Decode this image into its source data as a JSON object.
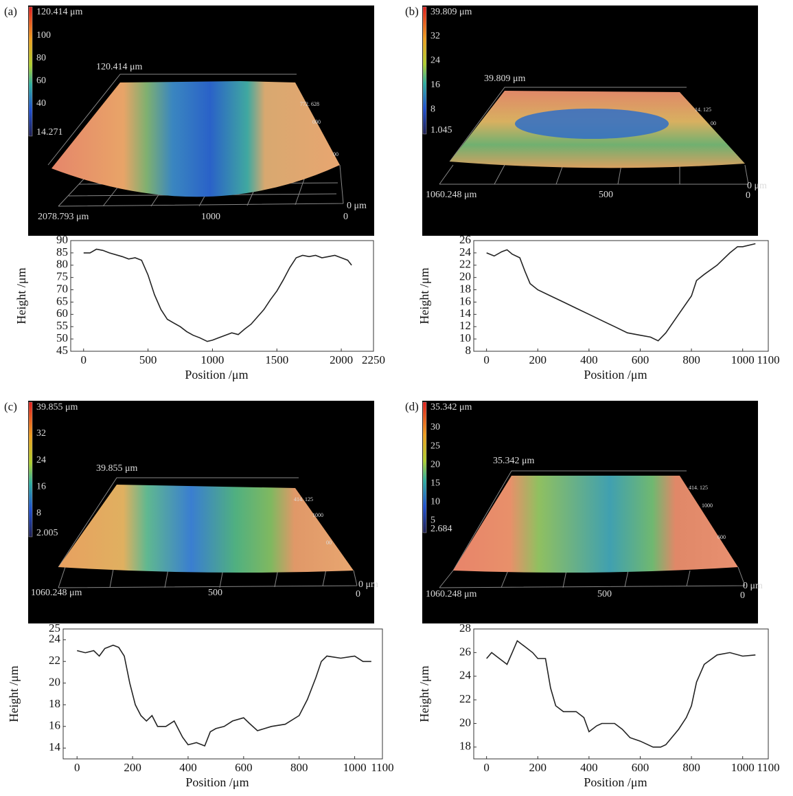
{
  "chart_data": [
    {
      "type": "line",
      "panel": "(a)",
      "xlabel": "Position /μm",
      "ylabel": "Height /μm",
      "x": [
        0,
        50,
        100,
        150,
        200,
        300,
        350,
        400,
        450,
        500,
        550,
        600,
        650,
        700,
        750,
        800,
        850,
        900,
        960,
        1000,
        1050,
        1100,
        1150,
        1200,
        1250,
        1300,
        1350,
        1400,
        1450,
        1500,
        1550,
        1600,
        1650,
        1700,
        1750,
        1800,
        1850,
        1900,
        1950,
        2000,
        2050,
        2080
      ],
      "values": [
        85,
        85,
        86.5,
        86,
        85,
        83.5,
        82.5,
        83,
        82,
        76,
        68,
        62,
        58,
        56.5,
        55,
        53,
        51.5,
        50.5,
        49,
        49.5,
        50.5,
        51.5,
        52.5,
        51.8,
        54,
        56,
        59,
        62,
        66,
        69.5,
        74,
        79,
        83,
        84,
        83.5,
        84,
        83,
        83.5,
        84,
        83,
        82,
        80
      ],
      "color": "#222222",
      "xlim": [
        -100,
        2250
      ],
      "ylim": [
        45,
        90
      ],
      "xticks": [
        0,
        500,
        1000,
        1500,
        2000,
        2250
      ],
      "yticks": [
        45,
        50,
        55,
        60,
        65,
        70,
        75,
        80,
        85,
        90
      ],
      "surface": {
        "colorbar_lim": [
          14.271,
          120.414
        ],
        "colorbar_ticks": [
          {
            "value": 120.414,
            "label": "120.414 μm"
          },
          100,
          80,
          60,
          40,
          14.271
        ],
        "labels": [
          "120.414 μm",
          "2078.793 μm",
          "1000",
          "0 μm",
          "0"
        ],
        "small_labels": [
          "772. 628",
          "000",
          "00"
        ]
      }
    },
    {
      "type": "line",
      "panel": "(b)",
      "xlabel": "Position /μm",
      "ylabel": "Height /μm",
      "x": [
        0,
        30,
        60,
        80,
        100,
        130,
        150,
        170,
        200,
        250,
        300,
        350,
        400,
        450,
        500,
        550,
        600,
        640,
        670,
        700,
        750,
        800,
        820,
        850,
        900,
        950,
        980,
        1000,
        1050
      ],
      "values": [
        24,
        23.5,
        24.2,
        24.5,
        23.8,
        23.2,
        21,
        19,
        18,
        17,
        16,
        15,
        14,
        13,
        12,
        11,
        10.6,
        10.3,
        9.7,
        11,
        14,
        17,
        19.5,
        20.5,
        22,
        24,
        25,
        25,
        25.5
      ],
      "color": "#222222",
      "xlim": [
        -50,
        1100
      ],
      "ylim": [
        8,
        26
      ],
      "xticks": [
        0,
        200,
        400,
        600,
        800,
        1000,
        1100
      ],
      "yticks": [
        8,
        10,
        12,
        14,
        16,
        18,
        20,
        22,
        24,
        26
      ],
      "surface": {
        "colorbar_lim": [
          1.045,
          39.809
        ],
        "colorbar_ticks": [
          {
            "value": 39.809,
            "label": "39.809 μm"
          },
          32,
          24,
          16,
          8,
          1.045
        ],
        "labels": [
          "39.809 μm",
          "1060.248 μm",
          "500",
          "0 μm",
          "0"
        ],
        "small_labels": [
          "14. 125",
          "00"
        ]
      }
    },
    {
      "type": "line",
      "panel": "(c)",
      "xlabel": "Position /μm",
      "ylabel": "Height /μm",
      "x": [
        0,
        30,
        60,
        80,
        100,
        130,
        150,
        170,
        190,
        210,
        230,
        250,
        270,
        290,
        320,
        350,
        380,
        400,
        430,
        460,
        480,
        500,
        530,
        560,
        600,
        620,
        650,
        700,
        750,
        800,
        830,
        860,
        880,
        900,
        950,
        1000,
        1030,
        1060
      ],
      "values": [
        23,
        22.8,
        23,
        22.5,
        23.2,
        23.5,
        23.3,
        22.5,
        20,
        18,
        17,
        16.5,
        17,
        16,
        16,
        16.5,
        15,
        14.3,
        14.5,
        14.2,
        15.5,
        15.8,
        16,
        16.5,
        16.8,
        16.3,
        15.6,
        16,
        16.2,
        17,
        18.5,
        20.5,
        22,
        22.5,
        22.3,
        22.5,
        22,
        22
      ],
      "color": "#222222",
      "xlim": [
        -50,
        1100
      ],
      "ylim": [
        13,
        25
      ],
      "xticks": [
        0,
        200,
        400,
        600,
        800,
        1000,
        1100
      ],
      "yticks": [
        14,
        16,
        18,
        20,
        22,
        24,
        25
      ],
      "surface": {
        "colorbar_lim": [
          2.005,
          39.855
        ],
        "colorbar_ticks": [
          {
            "value": 39.855,
            "label": "39.855 μm"
          },
          32,
          24,
          16,
          8,
          2.005
        ],
        "labels": [
          "39.855 μm",
          "1060.248 μm",
          "500",
          "0 μm",
          "0"
        ],
        "small_labels": [
          "414. 125",
          "1000",
          "00"
        ]
      }
    },
    {
      "type": "line",
      "panel": "(d)",
      "xlabel": "Position /μm",
      "ylabel": "Height /μm",
      "x": [
        0,
        20,
        50,
        80,
        100,
        120,
        150,
        180,
        200,
        230,
        250,
        270,
        300,
        350,
        380,
        400,
        430,
        450,
        500,
        530,
        560,
        600,
        650,
        680,
        700,
        750,
        780,
        800,
        820,
        850,
        900,
        950,
        1000,
        1050
      ],
      "values": [
        25.5,
        26,
        25.5,
        25,
        26,
        27,
        26.5,
        26,
        25.5,
        25.5,
        23,
        21.5,
        21,
        21,
        20.5,
        19.3,
        19.8,
        20,
        20,
        19.5,
        18.8,
        18.5,
        18,
        18,
        18.2,
        19.5,
        20.5,
        21.5,
        23.5,
        25,
        25.8,
        26,
        25.7,
        25.8
      ],
      "color": "#222222",
      "xlim": [
        -50,
        1100
      ],
      "ylim": [
        17,
        28
      ],
      "xticks": [
        0,
        200,
        400,
        600,
        800,
        1000,
        1100
      ],
      "yticks": [
        18,
        20,
        22,
        24,
        26,
        28
      ],
      "surface": {
        "colorbar_lim": [
          2.684,
          35.342
        ],
        "colorbar_ticks": [
          {
            "value": 35.342,
            "label": "35.342 μm"
          },
          30,
          25,
          20,
          15,
          10,
          5,
          2.684
        ],
        "labels": [
          "35.342 μm",
          "1060.248 μm",
          "500",
          "0 μm",
          "0"
        ],
        "small_labels": [
          "414. 125",
          "1000",
          "600"
        ]
      }
    }
  ]
}
